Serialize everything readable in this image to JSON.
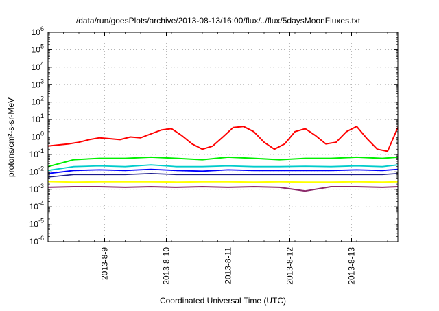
{
  "chart_data": {
    "type": "line",
    "title": "/data/run/goesPlots/archive/2013-08-13/16:00/flux/../flux/5daysMoonFluxes.txt",
    "xlabel": "Coordinated Universal Time (UTC)",
    "ylabel": "protons/cm²-s-sr-MeV",
    "yscale": "log",
    "ylim": [
      1e-06,
      1000000.0
    ],
    "xlim": [
      "2013-08-08T02:00",
      "2013-08-13T18:00"
    ],
    "grid": true,
    "legend": "none",
    "x_ticks": [
      {
        "label": "2013-8-9",
        "value": "2013-08-09"
      },
      {
        "label": "2013-8-10",
        "value": "2013-08-10"
      },
      {
        "label": "2013-8-11",
        "value": "2013-08-11"
      },
      {
        "label": "2013-8-12",
        "value": "2013-08-12"
      },
      {
        "label": "2013-8-13",
        "value": "2013-08-13"
      }
    ],
    "y_ticks": [
      {
        "base": "10",
        "exp": "-6",
        "value": -6
      },
      {
        "base": "10",
        "exp": "-5",
        "value": -5
      },
      {
        "base": "10",
        "exp": "-4",
        "value": -4
      },
      {
        "base": "10",
        "exp": "-3",
        "value": -3
      },
      {
        "base": "10",
        "exp": "-2",
        "value": -2
      },
      {
        "base": "10",
        "exp": "-1",
        "value": -1
      },
      {
        "base": "10",
        "exp": "0",
        "value": 0
      },
      {
        "base": "10",
        "exp": "1",
        "value": 1
      },
      {
        "base": "10",
        "exp": "2",
        "value": 2
      },
      {
        "base": "10",
        "exp": "3",
        "value": 3
      },
      {
        "base": "10",
        "exp": "4",
        "value": 4
      },
      {
        "base": "10",
        "exp": "5",
        "value": 5
      },
      {
        "base": "10",
        "exp": "6",
        "value": 6
      }
    ],
    "series": [
      {
        "color": "#ff0000",
        "width": 2,
        "x": [
          "2013-08-08T02:00",
          "2013-08-08T06:00",
          "2013-08-08T10:00",
          "2013-08-08T14:00",
          "2013-08-08T18:00",
          "2013-08-08T22:00",
          "2013-08-09T02:00",
          "2013-08-09T06:00",
          "2013-08-09T10:00",
          "2013-08-09T14:00",
          "2013-08-09T18:00",
          "2013-08-09T22:00",
          "2013-08-10T02:00",
          "2013-08-10T06:00",
          "2013-08-10T10:00",
          "2013-08-10T14:00",
          "2013-08-10T18:00",
          "2013-08-10T22:00",
          "2013-08-11T02:00",
          "2013-08-11T06:00",
          "2013-08-11T10:00",
          "2013-08-11T14:00",
          "2013-08-11T18:00",
          "2013-08-11T22:00",
          "2013-08-12T02:00",
          "2013-08-12T06:00",
          "2013-08-12T10:00",
          "2013-08-12T14:00",
          "2013-08-12T18:00",
          "2013-08-12T22:00",
          "2013-08-13T02:00",
          "2013-08-13T06:00",
          "2013-08-13T10:00",
          "2013-08-13T14:00",
          "2013-08-13T18:00"
        ],
        "y": [
          0.3,
          0.35,
          0.4,
          0.5,
          0.7,
          0.9,
          0.8,
          0.7,
          1.0,
          0.9,
          1.5,
          2.5,
          3.0,
          1.2,
          0.4,
          0.2,
          0.3,
          1.0,
          3.5,
          4.0,
          2.0,
          0.5,
          0.2,
          0.4,
          2.0,
          3.0,
          1.2,
          0.4,
          0.5,
          2.0,
          4.0,
          0.8,
          0.2,
          0.15,
          3.5
        ]
      },
      {
        "color": "#00ee00",
        "width": 2,
        "x": [
          "2013-08-08T02:00",
          "2013-08-08T12:00",
          "2013-08-08T22:00",
          "2013-08-09T08:00",
          "2013-08-09T18:00",
          "2013-08-10T04:00",
          "2013-08-10T14:00",
          "2013-08-11T00:00",
          "2013-08-11T10:00",
          "2013-08-11T20:00",
          "2013-08-12T06:00",
          "2013-08-12T16:00",
          "2013-08-13T02:00",
          "2013-08-13T12:00",
          "2013-08-13T18:00"
        ],
        "y": [
          0.02,
          0.05,
          0.06,
          0.06,
          0.07,
          0.06,
          0.05,
          0.07,
          0.06,
          0.05,
          0.06,
          0.06,
          0.07,
          0.06,
          0.07
        ]
      },
      {
        "color": "#00cccc",
        "width": 1.8,
        "x": [
          "2013-08-08T02:00",
          "2013-08-08T12:00",
          "2013-08-08T22:00",
          "2013-08-09T08:00",
          "2013-08-09T18:00",
          "2013-08-10T04:00",
          "2013-08-10T14:00",
          "2013-08-11T00:00",
          "2013-08-11T10:00",
          "2013-08-11T20:00",
          "2013-08-12T06:00",
          "2013-08-12T16:00",
          "2013-08-13T02:00",
          "2013-08-13T12:00",
          "2013-08-13T18:00"
        ],
        "y": [
          0.012,
          0.02,
          0.022,
          0.02,
          0.025,
          0.02,
          0.02,
          0.022,
          0.02,
          0.02,
          0.021,
          0.02,
          0.022,
          0.02,
          0.025
        ]
      },
      {
        "color": "#0000ff",
        "width": 1.8,
        "x": [
          "2013-08-08T02:00",
          "2013-08-08T12:00",
          "2013-08-08T22:00",
          "2013-08-09T08:00",
          "2013-08-09T18:00",
          "2013-08-10T04:00",
          "2013-08-10T14:00",
          "2013-08-11T00:00",
          "2013-08-11T10:00",
          "2013-08-11T20:00",
          "2013-08-12T06:00",
          "2013-08-12T16:00",
          "2013-08-13T02:00",
          "2013-08-13T12:00",
          "2013-08-13T18:00"
        ],
        "y": [
          0.008,
          0.012,
          0.013,
          0.012,
          0.014,
          0.012,
          0.011,
          0.013,
          0.012,
          0.012,
          0.012,
          0.012,
          0.013,
          0.012,
          0.014
        ]
      },
      {
        "color": "#1a1a8c",
        "width": 1.6,
        "x": [
          "2013-08-08T02:00",
          "2013-08-08T12:00",
          "2013-08-08T22:00",
          "2013-08-09T08:00",
          "2013-08-09T18:00",
          "2013-08-10T04:00",
          "2013-08-10T14:00",
          "2013-08-11T00:00",
          "2013-08-11T10:00",
          "2013-08-11T20:00",
          "2013-08-12T06:00",
          "2013-08-12T16:00",
          "2013-08-13T02:00",
          "2013-08-13T12:00",
          "2013-08-13T18:00"
        ],
        "y": [
          0.005,
          0.007,
          0.007,
          0.007,
          0.008,
          0.007,
          0.007,
          0.007,
          0.007,
          0.007,
          0.007,
          0.007,
          0.007,
          0.007,
          0.008
        ]
      },
      {
        "color": "#ffff00",
        "width": 2,
        "x": [
          "2013-08-08T02:00",
          "2013-08-08T12:00",
          "2013-08-08T22:00",
          "2013-08-09T08:00",
          "2013-08-09T18:00",
          "2013-08-10T04:00",
          "2013-08-10T14:00",
          "2013-08-11T00:00",
          "2013-08-11T10:00",
          "2013-08-11T20:00",
          "2013-08-12T06:00",
          "2013-08-12T16:00",
          "2013-08-13T02:00",
          "2013-08-13T12:00",
          "2013-08-13T18:00"
        ],
        "y": [
          0.0028,
          0.0026,
          0.0027,
          0.0027,
          0.0027,
          0.0026,
          0.0027,
          0.0027,
          0.0026,
          0.0027,
          0.0026,
          0.0026,
          0.0027,
          0.0026,
          0.0027
        ]
      },
      {
        "color": "#8b2a6b",
        "width": 2,
        "x": [
          "2013-08-08T02:00",
          "2013-08-08T12:00",
          "2013-08-08T22:00",
          "2013-08-09T08:00",
          "2013-08-09T18:00",
          "2013-08-10T04:00",
          "2013-08-10T14:00",
          "2013-08-11T00:00",
          "2013-08-11T10:00",
          "2013-08-11T20:00",
          "2013-08-12T06:00",
          "2013-08-12T16:00",
          "2013-08-13T02:00",
          "2013-08-13T12:00",
          "2013-08-13T18:00"
        ],
        "y": [
          0.0013,
          0.0014,
          0.0014,
          0.0013,
          0.0014,
          0.0013,
          0.0014,
          0.0013,
          0.0014,
          0.0013,
          0.0008,
          0.0014,
          0.0014,
          0.0013,
          0.0014
        ]
      }
    ]
  }
}
